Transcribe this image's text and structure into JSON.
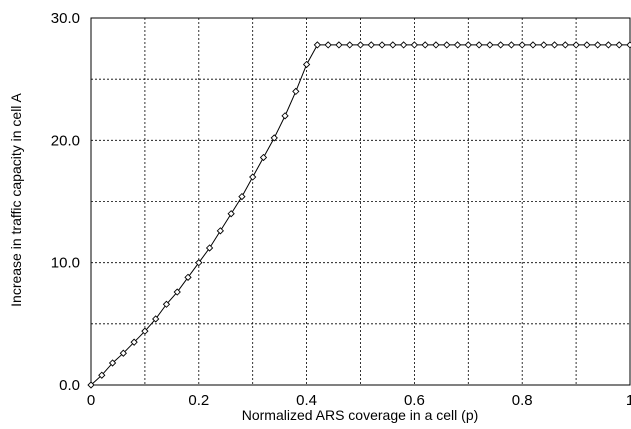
{
  "chart_data": {
    "type": "line",
    "xlabel": "Normalized ARS coverage in a cell (p)",
    "ylabel": "Increase in traffic capacity in cell A",
    "xlim": [
      0,
      1
    ],
    "ylim": [
      0,
      30
    ],
    "x_ticks": [
      0,
      0.2,
      0.4,
      0.6,
      0.8,
      1.0
    ],
    "x_tick_labels": [
      "0",
      "0.2",
      "0.4",
      "0.6",
      "0.8",
      "1"
    ],
    "y_ticks": [
      0,
      10,
      20,
      30
    ],
    "y_tick_labels": [
      "0.0",
      "10.0",
      "20.0",
      "30.0"
    ],
    "grid": true,
    "marker": "diamond",
    "series": [
      {
        "x": [
          0,
          0.02,
          0.04,
          0.06,
          0.08,
          0.1,
          0.12,
          0.14,
          0.16,
          0.18,
          0.2,
          0.22,
          0.24,
          0.26,
          0.28,
          0.3,
          0.32,
          0.34,
          0.36,
          0.38,
          0.4,
          0.42,
          0.44,
          0.46,
          0.48,
          0.5,
          0.52,
          0.54,
          0.56,
          0.58,
          0.6,
          0.62,
          0.64,
          0.66,
          0.68,
          0.7,
          0.72,
          0.74,
          0.76,
          0.78,
          0.8,
          0.82,
          0.84,
          0.86,
          0.88,
          0.9,
          0.92,
          0.94,
          0.96,
          0.98,
          1.0
        ],
        "values": [
          0.0,
          0.8,
          1.8,
          2.6,
          3.5,
          4.4,
          5.4,
          6.6,
          7.6,
          8.8,
          10.0,
          11.2,
          12.6,
          14.0,
          15.4,
          17.0,
          18.6,
          20.2,
          22.0,
          24.0,
          26.2,
          27.8,
          27.8,
          27.8,
          27.8,
          27.8,
          27.8,
          27.8,
          27.8,
          27.8,
          27.8,
          27.8,
          27.8,
          27.8,
          27.8,
          27.8,
          27.8,
          27.8,
          27.8,
          27.8,
          27.8,
          27.8,
          27.8,
          27.8,
          27.8,
          27.8,
          27.8,
          27.8,
          27.8,
          27.8,
          27.8
        ]
      }
    ]
  }
}
